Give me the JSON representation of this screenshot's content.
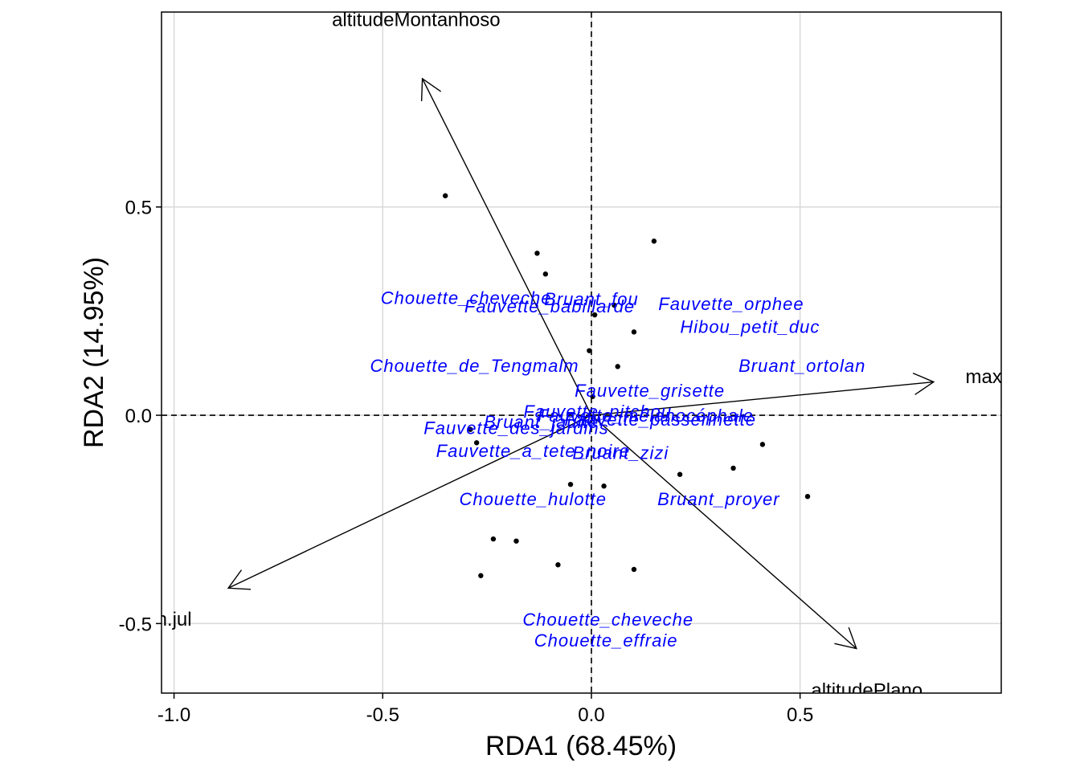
{
  "chart_data": {
    "type": "scatter",
    "subtype": "rda-triplot",
    "title": "",
    "xlabel": "RDA1 (68.45%)",
    "ylabel": "RDA2 (14.95%)",
    "xlim": [
      -1.03,
      0.982
    ],
    "ylim": [
      -0.667,
      0.968
    ],
    "x_ticks": [
      -1.0,
      -0.5,
      0.0,
      0.5
    ],
    "x_tick_labels": [
      "-1.0",
      "-0.5",
      "0.0",
      "0.5"
    ],
    "y_ticks": [
      -0.5,
      0.0,
      0.5
    ],
    "y_tick_labels": [
      "-0.5",
      "0.0",
      "0.5"
    ],
    "grid": true,
    "reference_lines": "dashed at x=0 and y=0",
    "colors": {
      "species_text": "#0000ff",
      "points": "#000000",
      "vectors": "#000000",
      "grid": "#d9d9d9"
    },
    "sites": [
      {
        "x": -0.35,
        "y": 0.527
      },
      {
        "x": -0.13,
        "y": 0.389
      },
      {
        "x": -0.11,
        "y": 0.339
      },
      {
        "x": 0.15,
        "y": 0.418
      },
      {
        "x": 0.055,
        "y": 0.264
      },
      {
        "x": 0.008,
        "y": 0.241
      },
      {
        "x": 0.102,
        "y": 0.2
      },
      {
        "x": -0.005,
        "y": 0.155
      },
      {
        "x": 0.063,
        "y": 0.117
      },
      {
        "x": 0.003,
        "y": 0.045
      },
      {
        "x": -0.29,
        "y": -0.034
      },
      {
        "x": -0.275,
        "y": -0.066
      },
      {
        "x": 0.41,
        "y": -0.07
      },
      {
        "x": 0.34,
        "y": -0.127
      },
      {
        "x": 0.212,
        "y": -0.142
      },
      {
        "x": 0.518,
        "y": -0.195
      },
      {
        "x": -0.05,
        "y": -0.166
      },
      {
        "x": 0.03,
        "y": -0.17
      },
      {
        "x": -0.235,
        "y": -0.297
      },
      {
        "x": -0.18,
        "y": -0.302
      },
      {
        "x": -0.08,
        "y": -0.359
      },
      {
        "x": 0.102,
        "y": -0.37
      },
      {
        "x": -0.265,
        "y": -0.385
      }
    ],
    "species": [
      {
        "label": "Chouette_cheveche",
        "x": -0.3,
        "y": 0.283
      },
      {
        "label": "Bruant_fou",
        "x": 0.0,
        "y": 0.28
      },
      {
        "label": "Fauvette_babillarde",
        "x": -0.1,
        "y": 0.262
      },
      {
        "label": "Fauvette_orphee",
        "x": 0.335,
        "y": 0.268
      },
      {
        "label": "Hibou_petit_duc",
        "x": 0.38,
        "y": 0.213
      },
      {
        "label": "Chouette_de_Tengmalm",
        "x": -0.28,
        "y": 0.12
      },
      {
        "label": "Bruant_ortolan",
        "x": 0.505,
        "y": 0.12
      },
      {
        "label": "Fauvette_grisette",
        "x": 0.14,
        "y": 0.06
      },
      {
        "label": "Fauvette_pitchou",
        "x": 0.015,
        "y": 0.01
      },
      {
        "label": "Fauvette_mélanocéphale",
        "x": 0.13,
        "y": 0.0
      },
      {
        "label": "Bruant_jaune",
        "x": -0.12,
        "y": -0.015
      },
      {
        "label": "Fauvette_passerinette",
        "x": 0.165,
        "y": -0.01
      },
      {
        "label": "Fauvette_des_jardins",
        "x": -0.18,
        "y": -0.03
      },
      {
        "label": "Fauvette_a_tete_noire",
        "x": -0.14,
        "y": -0.085
      },
      {
        "label": "Bruant_zizi",
        "x": 0.07,
        "y": -0.09
      },
      {
        "label": "Chouette_hulotte",
        "x": -0.14,
        "y": -0.2
      },
      {
        "label": "Bruant_proyer",
        "x": 0.305,
        "y": -0.2
      },
      {
        "label": "Chouette_cheveche",
        "x": 0.04,
        "y": -0.49
      },
      {
        "label": "Chouette_effraie",
        "x": 0.035,
        "y": -0.54
      }
    ],
    "vectors": [
      {
        "label": "altitudeMontanhoso",
        "x": -0.405,
        "y": 0.808,
        "label_x": -0.42,
        "label_y": 0.95
      },
      {
        "label": "max",
        "x": 0.82,
        "y": 0.08,
        "label_x": 0.94,
        "label_y": 0.093
      },
      {
        "label": "altitudePlano",
        "x": 0.635,
        "y": -0.56,
        "label_x": 0.66,
        "label_y": -0.66
      },
      {
        "label": "n.jul",
        "x": -0.87,
        "y": -0.415,
        "label_x": -1.0,
        "label_y": -0.49
      }
    ]
  }
}
